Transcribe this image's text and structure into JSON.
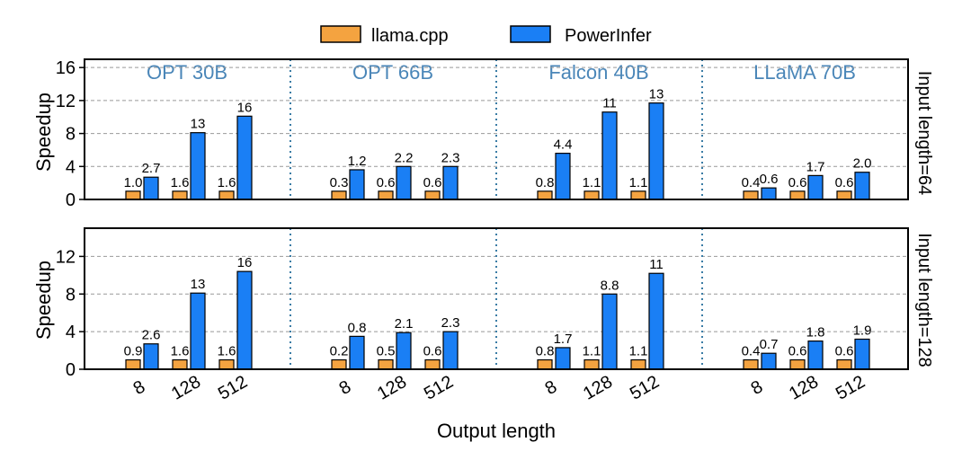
{
  "chart_data": {
    "type": "bar",
    "xlabel": "Output length",
    "ylabel": "Speedup",
    "legend": {
      "placement": "top-center",
      "entries": [
        {
          "name": "llama.cpp",
          "color": "#f4a340"
        },
        {
          "name": "PowerInfer",
          "color": "#1a7ff5"
        }
      ]
    },
    "group_title_color": "#4a86b8",
    "groups": [
      "OPT 30B",
      "OPT 66B",
      "Falcon 40B",
      "LLaMA 70B"
    ],
    "categories": [
      "8",
      "128",
      "512"
    ],
    "panels": [
      {
        "row_label": "Input length=64",
        "ylim": [
          0,
          17
        ],
        "yticks": [
          0,
          4,
          8,
          12,
          16
        ],
        "grid": true,
        "series": [
          {
            "name": "llama.cpp",
            "values": [
              [
                1,
                1,
                1
              ],
              [
                1,
                1,
                1
              ],
              [
                1,
                1,
                1
              ],
              [
                1,
                1,
                1
              ]
            ],
            "labels": [
              [
                "1.0",
                "1.6",
                "1.6"
              ],
              [
                "0.3",
                "0.6",
                "0.6"
              ],
              [
                "0.8",
                "1.1",
                "1.1"
              ],
              [
                "0.4",
                "0.6",
                "0.6"
              ]
            ]
          },
          {
            "name": "PowerInfer",
            "values": [
              [
                2.7,
                8.1,
                10.1
              ],
              [
                3.6,
                4.0,
                4.0
              ],
              [
                5.6,
                10.6,
                11.7
              ],
              [
                1.4,
                2.9,
                3.3
              ]
            ],
            "labels": [
              [
                "2.7",
                "13",
                "16"
              ],
              [
                "1.2",
                "2.2",
                "2.3"
              ],
              [
                "4.4",
                "11",
                "13"
              ],
              [
                "0.6",
                "1.7",
                "2.0"
              ]
            ]
          }
        ]
      },
      {
        "row_label": "Input length=128",
        "ylim": [
          0,
          15
        ],
        "yticks": [
          0,
          4,
          8,
          12
        ],
        "grid": true,
        "series": [
          {
            "name": "llama.cpp",
            "values": [
              [
                1,
                1,
                1
              ],
              [
                1,
                1,
                1
              ],
              [
                1,
                1,
                1
              ],
              [
                1,
                1,
                1
              ]
            ],
            "labels": [
              [
                "0.9",
                "1.6",
                "1.6"
              ],
              [
                "0.2",
                "0.5",
                "0.6"
              ],
              [
                "0.8",
                "1.1",
                "1.1"
              ],
              [
                "0.4",
                "0.6",
                "0.6"
              ]
            ]
          },
          {
            "name": "PowerInfer",
            "values": [
              [
                2.7,
                8.1,
                10.4
              ],
              [
                3.5,
                3.9,
                4.0
              ],
              [
                2.3,
                8.0,
                10.2
              ],
              [
                1.7,
                3.0,
                3.2
              ]
            ],
            "labels": [
              [
                "2.6",
                "13",
                "16"
              ],
              [
                "0.8",
                "2.1",
                "2.3"
              ],
              [
                "1.7",
                "8.8",
                "11"
              ],
              [
                "0.7",
                "1.8",
                "1.9"
              ]
            ]
          }
        ]
      }
    ]
  }
}
